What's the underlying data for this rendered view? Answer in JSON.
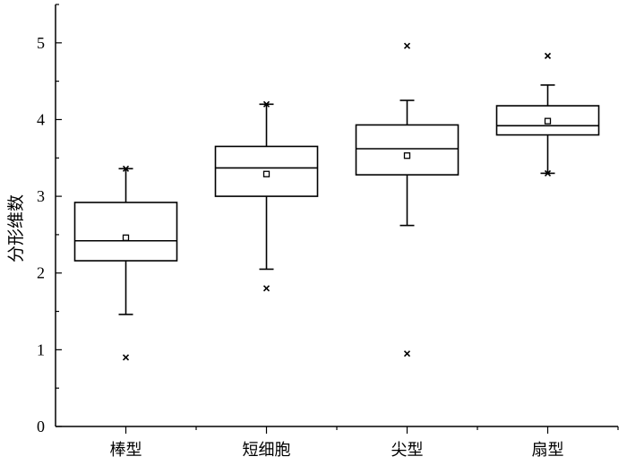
{
  "chart_data": {
    "type": "box",
    "ylabel": "分形维数",
    "xlabel": "",
    "ylim": [
      0,
      5.5
    ],
    "yticks": [
      0,
      1,
      2,
      3,
      4,
      5
    ],
    "grid": false,
    "categories": [
      "棒型",
      "短细胞",
      "尖型",
      "扇型"
    ],
    "boxes": [
      {
        "category": "棒型",
        "whisker_low": 1.46,
        "q1": 2.16,
        "median": 2.42,
        "q3": 2.92,
        "whisker_high": 3.36,
        "mean": 2.46,
        "outliers": [
          0.9,
          3.36
        ]
      },
      {
        "category": "短细胞",
        "whisker_low": 2.05,
        "q1": 3.0,
        "median": 3.37,
        "q3": 3.65,
        "whisker_high": 4.2,
        "mean": 3.29,
        "outliers": [
          1.8,
          4.2
        ]
      },
      {
        "category": "尖型",
        "whisker_low": 2.62,
        "q1": 3.28,
        "median": 3.62,
        "q3": 3.93,
        "whisker_high": 4.25,
        "mean": 3.53,
        "outliers": [
          0.95,
          4.96
        ]
      },
      {
        "category": "扇型",
        "whisker_low": 3.3,
        "q1": 3.8,
        "median": 3.92,
        "q3": 4.18,
        "whisker_high": 4.45,
        "mean": 3.98,
        "outliers": [
          3.3,
          4.83
        ]
      }
    ]
  }
}
